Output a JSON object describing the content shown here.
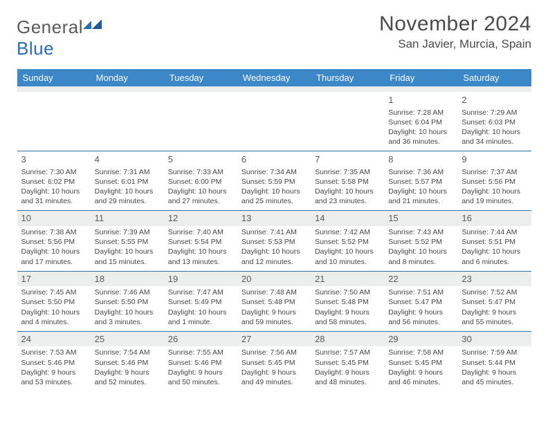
{
  "brand": {
    "word1": "General",
    "word2": "Blue"
  },
  "header": {
    "month": "November 2024",
    "location": "San Javier, Murcia, Spain"
  },
  "colors": {
    "header_bg": "#3b87c8",
    "header_fg": "#ffffff",
    "rule": "#2f6fa8",
    "shade": "#eceded",
    "text": "#464646",
    "brand_blue": "#2a6db8"
  },
  "days": [
    "Sunday",
    "Monday",
    "Tuesday",
    "Wednesday",
    "Thursday",
    "Friday",
    "Saturday"
  ],
  "calendar": {
    "first_weekday_index": 5,
    "shaded_num_bg": true,
    "cells": [
      {
        "n": 1,
        "sunrise": "7:28 AM",
        "sunset": "6:04 PM",
        "daylight": "10 hours and 36 minutes."
      },
      {
        "n": 2,
        "sunrise": "7:29 AM",
        "sunset": "6:03 PM",
        "daylight": "10 hours and 34 minutes."
      },
      {
        "n": 3,
        "sunrise": "7:30 AM",
        "sunset": "6:02 PM",
        "daylight": "10 hours and 31 minutes."
      },
      {
        "n": 4,
        "sunrise": "7:31 AM",
        "sunset": "6:01 PM",
        "daylight": "10 hours and 29 minutes."
      },
      {
        "n": 5,
        "sunrise": "7:33 AM",
        "sunset": "6:00 PM",
        "daylight": "10 hours and 27 minutes."
      },
      {
        "n": 6,
        "sunrise": "7:34 AM",
        "sunset": "5:59 PM",
        "daylight": "10 hours and 25 minutes."
      },
      {
        "n": 7,
        "sunrise": "7:35 AM",
        "sunset": "5:58 PM",
        "daylight": "10 hours and 23 minutes."
      },
      {
        "n": 8,
        "sunrise": "7:36 AM",
        "sunset": "5:57 PM",
        "daylight": "10 hours and 21 minutes."
      },
      {
        "n": 9,
        "sunrise": "7:37 AM",
        "sunset": "5:56 PM",
        "daylight": "10 hours and 19 minutes."
      },
      {
        "n": 10,
        "sunrise": "7:38 AM",
        "sunset": "5:56 PM",
        "daylight": "10 hours and 17 minutes."
      },
      {
        "n": 11,
        "sunrise": "7:39 AM",
        "sunset": "5:55 PM",
        "daylight": "10 hours and 15 minutes."
      },
      {
        "n": 12,
        "sunrise": "7:40 AM",
        "sunset": "5:54 PM",
        "daylight": "10 hours and 13 minutes."
      },
      {
        "n": 13,
        "sunrise": "7:41 AM",
        "sunset": "5:53 PM",
        "daylight": "10 hours and 12 minutes."
      },
      {
        "n": 14,
        "sunrise": "7:42 AM",
        "sunset": "5:52 PM",
        "daylight": "10 hours and 10 minutes."
      },
      {
        "n": 15,
        "sunrise": "7:43 AM",
        "sunset": "5:52 PM",
        "daylight": "10 hours and 8 minutes."
      },
      {
        "n": 16,
        "sunrise": "7:44 AM",
        "sunset": "5:51 PM",
        "daylight": "10 hours and 6 minutes."
      },
      {
        "n": 17,
        "sunrise": "7:45 AM",
        "sunset": "5:50 PM",
        "daylight": "10 hours and 4 minutes."
      },
      {
        "n": 18,
        "sunrise": "7:46 AM",
        "sunset": "5:50 PM",
        "daylight": "10 hours and 3 minutes."
      },
      {
        "n": 19,
        "sunrise": "7:47 AM",
        "sunset": "5:49 PM",
        "daylight": "10 hours and 1 minute."
      },
      {
        "n": 20,
        "sunrise": "7:48 AM",
        "sunset": "5:48 PM",
        "daylight": "9 hours and 59 minutes."
      },
      {
        "n": 21,
        "sunrise": "7:50 AM",
        "sunset": "5:48 PM",
        "daylight": "9 hours and 58 minutes."
      },
      {
        "n": 22,
        "sunrise": "7:51 AM",
        "sunset": "5:47 PM",
        "daylight": "9 hours and 56 minutes."
      },
      {
        "n": 23,
        "sunrise": "7:52 AM",
        "sunset": "5:47 PM",
        "daylight": "9 hours and 55 minutes."
      },
      {
        "n": 24,
        "sunrise": "7:53 AM",
        "sunset": "5:46 PM",
        "daylight": "9 hours and 53 minutes."
      },
      {
        "n": 25,
        "sunrise": "7:54 AM",
        "sunset": "5:46 PM",
        "daylight": "9 hours and 52 minutes."
      },
      {
        "n": 26,
        "sunrise": "7:55 AM",
        "sunset": "5:46 PM",
        "daylight": "9 hours and 50 minutes."
      },
      {
        "n": 27,
        "sunrise": "7:56 AM",
        "sunset": "5:45 PM",
        "daylight": "9 hours and 49 minutes."
      },
      {
        "n": 28,
        "sunrise": "7:57 AM",
        "sunset": "5:45 PM",
        "daylight": "9 hours and 48 minutes."
      },
      {
        "n": 29,
        "sunrise": "7:58 AM",
        "sunset": "5:45 PM",
        "daylight": "9 hours and 46 minutes."
      },
      {
        "n": 30,
        "sunrise": "7:59 AM",
        "sunset": "5:44 PM",
        "daylight": "9 hours and 45 minutes."
      }
    ]
  },
  "labels": {
    "sunrise": "Sunrise:",
    "sunset": "Sunset:",
    "daylight": "Daylight:"
  }
}
